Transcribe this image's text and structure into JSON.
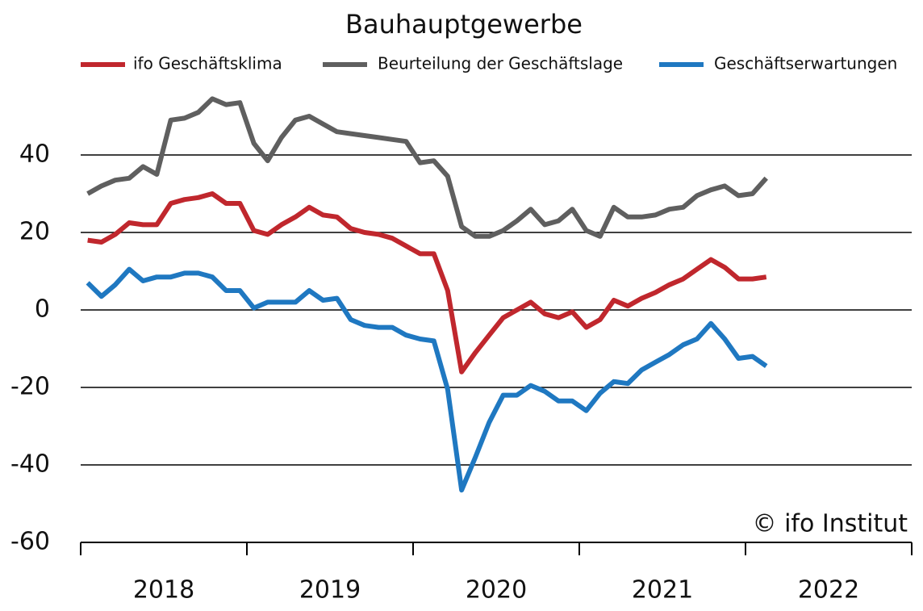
{
  "chart_data": {
    "type": "line",
    "title": "Bauhauptgewerbe",
    "credit": "© ifo Institut",
    "x": [
      2018.042,
      2018.125,
      2018.208,
      2018.292,
      2018.375,
      2018.458,
      2018.542,
      2018.625,
      2018.708,
      2018.792,
      2018.875,
      2018.958,
      2019.042,
      2019.125,
      2019.208,
      2019.292,
      2019.375,
      2019.458,
      2019.542,
      2019.625,
      2019.708,
      2019.792,
      2019.875,
      2019.958,
      2020.042,
      2020.125,
      2020.208,
      2020.292,
      2020.375,
      2020.458,
      2020.542,
      2020.625,
      2020.708,
      2020.792,
      2020.875,
      2020.958,
      2021.042,
      2021.125,
      2021.208,
      2021.292,
      2021.375,
      2021.458,
      2021.542,
      2021.625,
      2021.708,
      2021.792,
      2021.875,
      2021.958,
      2022.042,
      2022.125
    ],
    "series": [
      {
        "name": "ifo Geschäftsklima",
        "color": "#c0272d",
        "values": [
          18,
          17.5,
          19.5,
          22.5,
          22,
          22,
          27.5,
          28.5,
          29,
          30,
          27.5,
          27.5,
          20.5,
          19.5,
          22,
          24,
          26.5,
          24.5,
          24,
          21,
          20,
          19.5,
          18.5,
          16.5,
          14.5,
          14.5,
          5,
          -16,
          -11,
          -6.5,
          -2,
          0,
          2,
          -1,
          -2,
          -0.5,
          -4.5,
          -2.5,
          2.5,
          1,
          3,
          4.5,
          6.5,
          8,
          10.5,
          13,
          11,
          8,
          8,
          8.5
        ]
      },
      {
        "name": "Beurteilung der Geschäftslage",
        "color": "#5f5f5f",
        "values": [
          30,
          32,
          33.5,
          34,
          37,
          35,
          49,
          49.5,
          51,
          54.5,
          53,
          53.5,
          43,
          38.5,
          44.5,
          49,
          50,
          48,
          46,
          45.5,
          45,
          44.5,
          44,
          43.5,
          38,
          38.5,
          34.5,
          21.5,
          19,
          19,
          20.5,
          23,
          26,
          22,
          23,
          26,
          20.5,
          19,
          26.5,
          24,
          24,
          24.5,
          26,
          26.5,
          29.5,
          31,
          32,
          29.5,
          30,
          34
        ]
      },
      {
        "name": "Geschäftserwartungen",
        "color": "#1f78c1",
        "values": [
          7,
          3.5,
          6.5,
          10.5,
          7.5,
          8.5,
          8.5,
          9.5,
          9.5,
          8.5,
          5,
          5,
          0.5,
          2,
          2,
          2,
          5,
          2.5,
          3,
          -2.5,
          -4,
          -4.5,
          -4.5,
          -6.5,
          -7.5,
          -8,
          -20.5,
          -46.5,
          -38,
          -29,
          -22,
          -22,
          -19.5,
          -21,
          -23.5,
          -23.5,
          -26,
          -21.5,
          -18.5,
          -19,
          -15.5,
          -13.5,
          -11.5,
          -9,
          -7.5,
          -3.5,
          -7.5,
          -12.5,
          -12,
          -14.5
        ]
      }
    ],
    "xlim": [
      2018,
      2023
    ],
    "xtick_marks": [
      2018,
      2019,
      2020,
      2021,
      2022,
      2023
    ],
    "xticks": [
      {
        "value": 2018.5,
        "label": "2018"
      },
      {
        "value": 2019.5,
        "label": "2019"
      },
      {
        "value": 2020.5,
        "label": "2020"
      },
      {
        "value": 2021.5,
        "label": "2021"
      },
      {
        "value": 2022.5,
        "label": "2022"
      }
    ],
    "ylim": [
      -60,
      60
    ],
    "yticks": [
      -60,
      -40,
      -20,
      0,
      20,
      40
    ],
    "grid": true
  }
}
